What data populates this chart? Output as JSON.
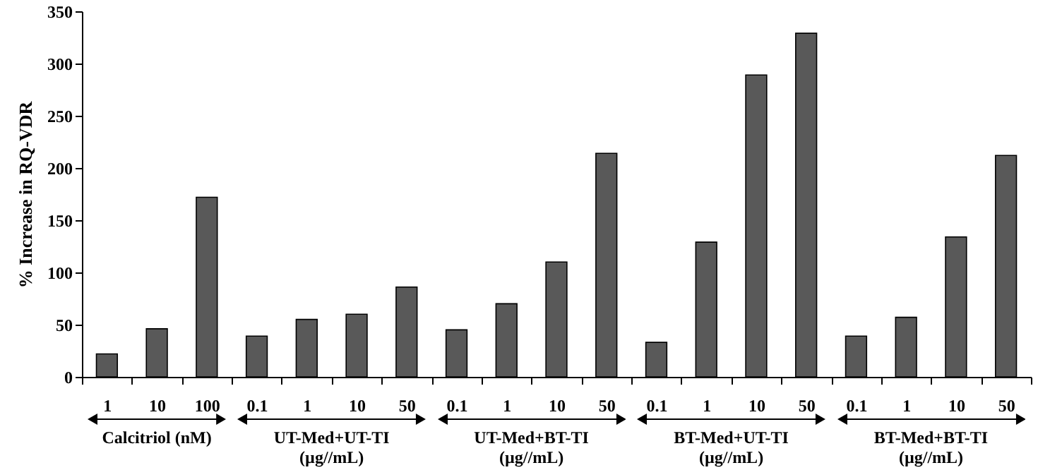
{
  "chart_data": {
    "type": "bar",
    "ylabel": "% Increase in RQ-VDR",
    "categories": [
      "1",
      "10",
      "100",
      "0.1",
      "1",
      "10",
      "50",
      "0.1",
      "1",
      "10",
      "50",
      "0.1",
      "1",
      "10",
      "50",
      "0.1",
      "1",
      "10",
      "50"
    ],
    "values": [
      22,
      46,
      172,
      39,
      55,
      60,
      86,
      45,
      70,
      110,
      214,
      33,
      129,
      289,
      329,
      39,
      57,
      134,
      212
    ],
    "color": "#595959",
    "ylim": [
      0,
      350
    ],
    "yticks": [
      0,
      50,
      100,
      150,
      200,
      250,
      300,
      350
    ],
    "grid": false,
    "annotations": [
      "Calcitriol (nM)",
      "UT-Med+UT-TI\n(µg//mL)",
      "UT-Med+BT-TI\n(µg//mL)",
      "BT-Med+UT-TI\n(µg//mL)",
      "BT-Med+BT-TI\n(µg//mL)"
    ]
  }
}
